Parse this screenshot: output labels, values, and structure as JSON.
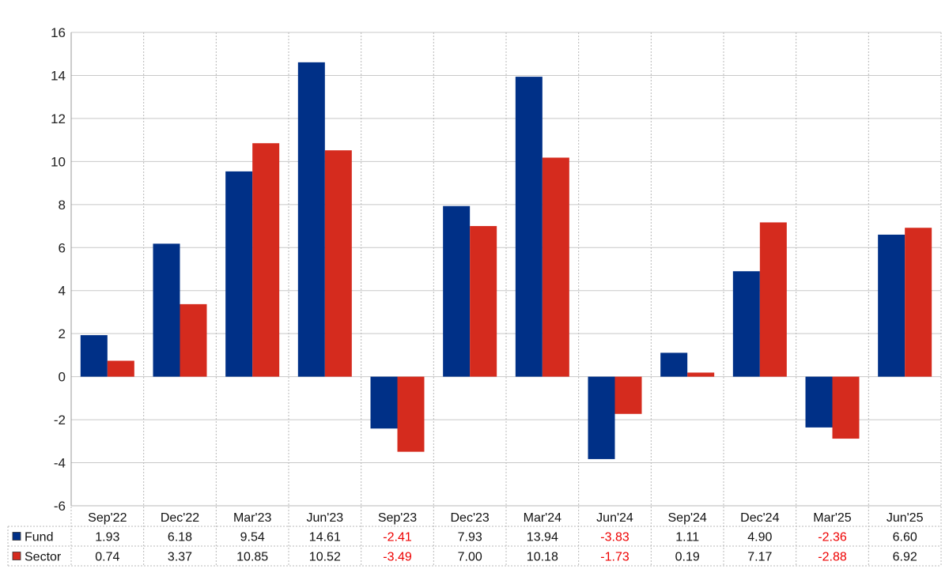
{
  "chart_data": {
    "type": "bar",
    "categories": [
      "Sep'22",
      "Dec'22",
      "Mar'23",
      "Jun'23",
      "Sep'23",
      "Dec'23",
      "Mar'24",
      "Jun'24",
      "Sep'24",
      "Dec'24",
      "Mar'25",
      "Jun'25"
    ],
    "series": [
      {
        "name": "Fund",
        "color": "#003087",
        "values": [
          1.93,
          6.18,
          9.54,
          14.61,
          -2.41,
          7.93,
          13.94,
          -3.83,
          1.11,
          4.9,
          -2.36,
          6.6
        ],
        "labels": [
          "1.93",
          "6.18",
          "9.54",
          "14.61",
          "-2.41",
          "7.93",
          "13.94",
          "-3.83",
          "1.11",
          "4.90",
          "-2.36",
          "6.60"
        ]
      },
      {
        "name": "Sector",
        "color": "#d52b1e",
        "values": [
          0.74,
          3.37,
          10.85,
          10.52,
          -3.49,
          7.0,
          10.18,
          -1.73,
          0.19,
          7.17,
          -2.88,
          6.92
        ],
        "labels": [
          "0.74",
          "3.37",
          "10.85",
          "10.52",
          "-3.49",
          "7.00",
          "10.18",
          "-1.73",
          "0.19",
          "7.17",
          "-2.88",
          "6.92"
        ]
      }
    ],
    "ylim": [
      -6,
      16
    ],
    "yticks": [
      "-6",
      "-4",
      "-2",
      "0",
      "2",
      "4",
      "6",
      "8",
      "10",
      "12",
      "14",
      "16"
    ],
    "grid": true,
    "negative_label_color": "#ee0000",
    "legend": "data-table-below"
  }
}
